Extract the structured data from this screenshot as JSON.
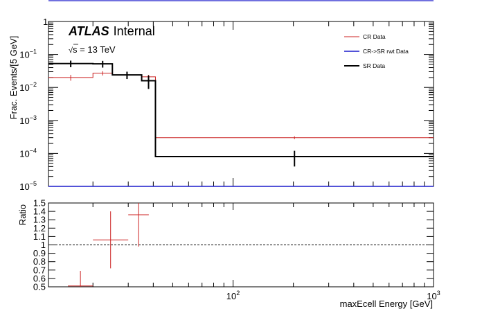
{
  "chart_data": {
    "type": "line",
    "style": "step-histogram-with-ratio-panel",
    "label": {
      "experiment": "ATLAS",
      "status": "Internal",
      "energy_prefix": "s",
      "energy_value": " = 13 TeV"
    },
    "xlabel": "maxEcell Energy [GeV]",
    "ylabel": "Frac. Events/[5 GeV]",
    "ratio_ylabel": "Ratio",
    "xscale": "log",
    "yscale": "log",
    "xlim": [
      12,
      1000
    ],
    "ylim": [
      1e-05,
      1
    ],
    "ratio_ylim": [
      0.5,
      1.5
    ],
    "x_tick_labels": [
      {
        "value": 100,
        "base": "10",
        "exp": "2"
      },
      {
        "value": 1000,
        "base": "10",
        "exp": "3"
      }
    ],
    "y_tick_labels": [
      {
        "value": 1,
        "base": "1",
        "exp": ""
      },
      {
        "value": 0.1,
        "base": "10",
        "exp": "−1"
      },
      {
        "value": 0.01,
        "base": "10",
        "exp": "−2"
      },
      {
        "value": 0.001,
        "base": "10",
        "exp": "−3"
      },
      {
        "value": 0.0001,
        "base": "10",
        "exp": "−4"
      },
      {
        "value": 1e-05,
        "base": "10",
        "exp": "−5"
      }
    ],
    "ratio_tick_labels": [
      "0.5",
      "0.6",
      "0.7",
      "0.8",
      "0.9",
      "1",
      "1.1",
      "1.2",
      "1.3",
      "1.4",
      "1.5"
    ],
    "legend_position": "top-right",
    "series": [
      {
        "name": "CR Data",
        "color": "#cc2222",
        "line_width": 1,
        "bins": [
          {
            "low": 12,
            "high": 20,
            "value": 0.02,
            "err": 0.004
          },
          {
            "low": 20,
            "high": 25,
            "value": 0.027,
            "err": 0.004
          },
          {
            "low": 25,
            "high": 35,
            "value": 0.024,
            "err": 0.003
          },
          {
            "low": 35,
            "high": 41,
            "value": 0.021,
            "err": 0.003
          },
          {
            "low": 41,
            "high": 1000,
            "value": 0.0003,
            "err": 3e-05
          }
        ]
      },
      {
        "name": "CR->SR rwt Data",
        "color": "#1a1acc",
        "line_width": 1.5,
        "bins": [
          {
            "low": 12,
            "high": 1000,
            "value": 1e-05,
            "err": 0
          }
        ]
      },
      {
        "name": "SR Data",
        "color": "#000000",
        "line_width": 2,
        "bins": [
          {
            "low": 12,
            "high": 20,
            "value": 0.053,
            "err": 0.012
          },
          {
            "low": 20,
            "high": 25,
            "value": 0.052,
            "err": 0.012
          },
          {
            "low": 25,
            "high": 35,
            "value": 0.024,
            "err": 0.006
          },
          {
            "low": 35,
            "high": 41,
            "value": 0.016,
            "err": 0.007
          },
          {
            "low": 41,
            "high": 1000,
            "value": 8e-05,
            "err": 4e-05
          }
        ]
      }
    ],
    "ratio": {
      "color": "#cc2222",
      "reference_line": 1,
      "points": [
        {
          "low": 15,
          "high": 20,
          "value": 0.51,
          "err": 0.18
        },
        {
          "low": 20,
          "high": 30,
          "value": 1.06,
          "err": 0.34
        },
        {
          "low": 30,
          "high": 38,
          "value": 1.36,
          "err": 0.38
        }
      ]
    }
  }
}
